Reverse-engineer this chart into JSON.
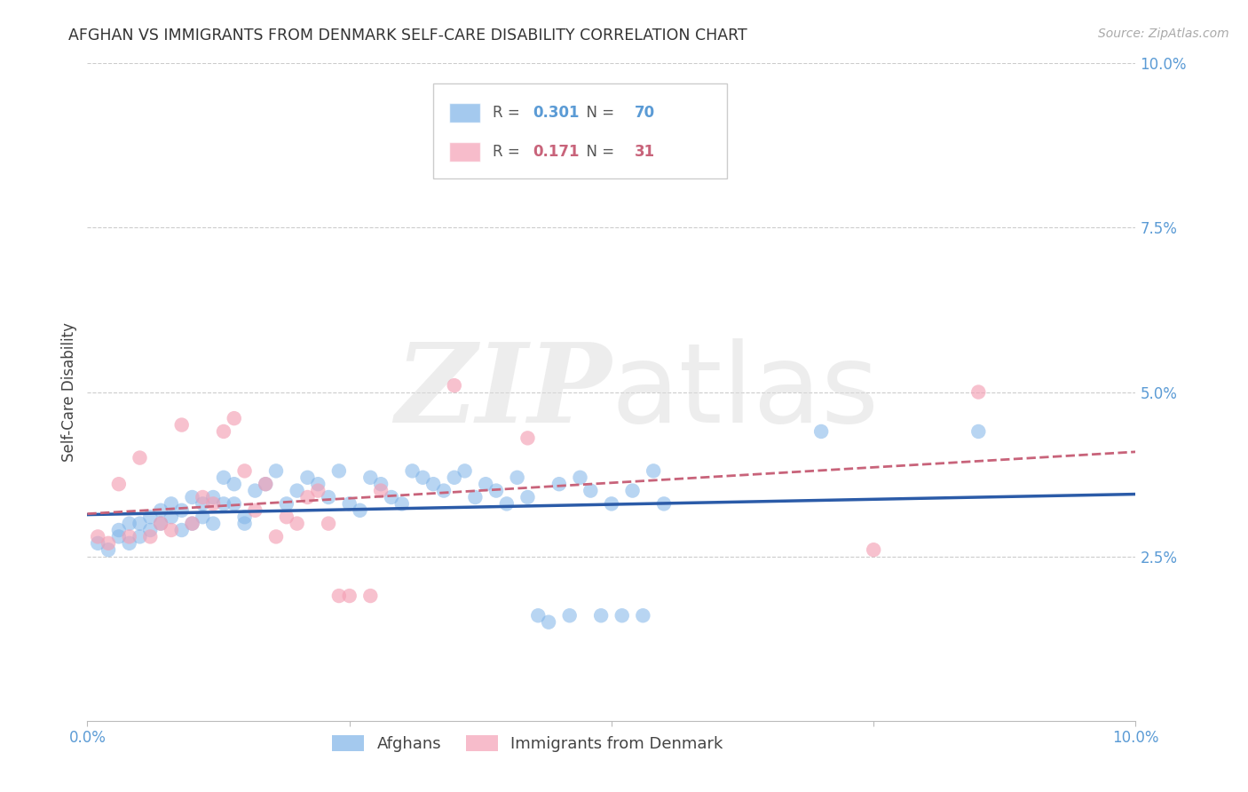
{
  "title": "AFGHAN VS IMMIGRANTS FROM DENMARK SELF-CARE DISABILITY CORRELATION CHART",
  "source": "Source: ZipAtlas.com",
  "ylabel": "Self-Care Disability",
  "xlim": [
    0.0,
    0.1
  ],
  "ylim": [
    0.0,
    0.1
  ],
  "yticks": [
    0.025,
    0.05,
    0.075,
    0.1
  ],
  "ytick_labels": [
    "2.5%",
    "5.0%",
    "7.5%",
    "10.0%"
  ],
  "watermark_zip": "ZIP",
  "watermark_atlas": "atlas",
  "legend_blue_r": "0.301",
  "legend_blue_n": "70",
  "legend_pink_r": "0.171",
  "legend_pink_n": "31",
  "blue_color": "#7EB3E8",
  "pink_color": "#F4A0B5",
  "line_blue_color": "#2B5BA8",
  "line_pink_color": "#C8637A",
  "axis_color": "#5B9BD5",
  "title_color": "#333333",
  "background_color": "#FFFFFF",
  "grid_color": "#CCCCCC",
  "afghans_x": [
    0.001,
    0.002,
    0.003,
    0.003,
    0.004,
    0.004,
    0.005,
    0.005,
    0.006,
    0.006,
    0.007,
    0.007,
    0.008,
    0.008,
    0.009,
    0.009,
    0.01,
    0.01,
    0.011,
    0.011,
    0.012,
    0.012,
    0.013,
    0.013,
    0.014,
    0.014,
    0.015,
    0.015,
    0.016,
    0.017,
    0.018,
    0.019,
    0.02,
    0.021,
    0.022,
    0.023,
    0.024,
    0.025,
    0.026,
    0.027,
    0.028,
    0.029,
    0.03,
    0.031,
    0.032,
    0.033,
    0.034,
    0.035,
    0.036,
    0.037,
    0.038,
    0.039,
    0.04,
    0.041,
    0.042,
    0.043,
    0.044,
    0.045,
    0.046,
    0.047,
    0.048,
    0.049,
    0.05,
    0.051,
    0.052,
    0.053,
    0.054,
    0.055,
    0.07,
    0.085
  ],
  "afghans_y": [
    0.027,
    0.026,
    0.029,
    0.028,
    0.027,
    0.03,
    0.03,
    0.028,
    0.031,
    0.029,
    0.032,
    0.03,
    0.031,
    0.033,
    0.029,
    0.032,
    0.03,
    0.034,
    0.031,
    0.033,
    0.034,
    0.03,
    0.033,
    0.037,
    0.036,
    0.033,
    0.031,
    0.03,
    0.035,
    0.036,
    0.038,
    0.033,
    0.035,
    0.037,
    0.036,
    0.034,
    0.038,
    0.033,
    0.032,
    0.037,
    0.036,
    0.034,
    0.033,
    0.038,
    0.037,
    0.036,
    0.035,
    0.037,
    0.038,
    0.034,
    0.036,
    0.035,
    0.033,
    0.037,
    0.034,
    0.016,
    0.015,
    0.036,
    0.016,
    0.037,
    0.035,
    0.016,
    0.033,
    0.016,
    0.035,
    0.016,
    0.038,
    0.033,
    0.044,
    0.044
  ],
  "denmark_x": [
    0.001,
    0.002,
    0.003,
    0.004,
    0.005,
    0.006,
    0.007,
    0.008,
    0.009,
    0.01,
    0.011,
    0.012,
    0.013,
    0.014,
    0.015,
    0.016,
    0.017,
    0.018,
    0.019,
    0.02,
    0.021,
    0.022,
    0.023,
    0.024,
    0.025,
    0.027,
    0.028,
    0.035,
    0.042,
    0.075,
    0.085
  ],
  "denmark_y": [
    0.028,
    0.027,
    0.036,
    0.028,
    0.04,
    0.028,
    0.03,
    0.029,
    0.045,
    0.03,
    0.034,
    0.033,
    0.044,
    0.046,
    0.038,
    0.032,
    0.036,
    0.028,
    0.031,
    0.03,
    0.034,
    0.035,
    0.03,
    0.019,
    0.019,
    0.019,
    0.035,
    0.051,
    0.043,
    0.026,
    0.05
  ]
}
